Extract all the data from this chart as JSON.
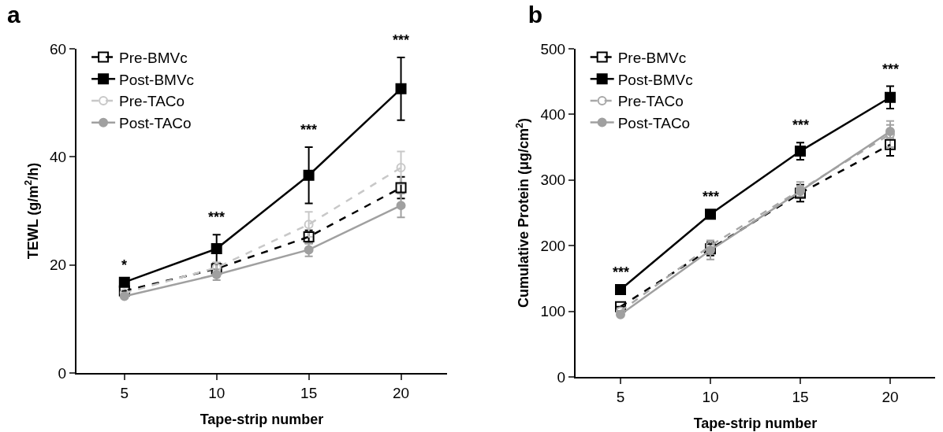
{
  "chart_data": [
    {
      "type": "line",
      "title": "a",
      "xlabel": "Tape-strip number",
      "ylabel": "TEWL (g/m$^{2}$/h)",
      "x": [
        5,
        10,
        15,
        20
      ],
      "xlim": [
        2.4,
        22.5
      ],
      "xticks": [
        5,
        10,
        15,
        20
      ],
      "ylim": [
        0,
        60
      ],
      "yticks": [
        0,
        20,
        40,
        60
      ],
      "grid": false,
      "legend": "top left",
      "series": [
        {
          "name": "Pre-BMVc",
          "color": "#000000",
          "marker": "square",
          "line_style": "dashed",
          "values": [
            15.2,
            19.3,
            25.2,
            34.3
          ],
          "errors": [
            null,
            1,
            1.2,
            2
          ]
        },
        {
          "name": "Post-BMVc",
          "color": "#000000",
          "marker": "square",
          "line_style": "solid",
          "values": [
            16.8,
            23.0,
            36.6,
            52.6
          ],
          "errors": [
            null,
            2.6,
            5.2,
            5.8
          ]
        },
        {
          "name": "Pre-TACo",
          "color": "#c8c8c8",
          "marker": "circle",
          "line_style": "dashed",
          "values": [
            14.8,
            19.5,
            27.5,
            38
          ],
          "errors": [
            null,
            1,
            2.3,
            3
          ]
        },
        {
          "name": "Post-TACo",
          "color": "#a0a0a0",
          "marker": "circle",
          "line_style": "solid",
          "values": [
            14.2,
            18.2,
            22.8,
            31.0
          ],
          "errors": [
            null,
            1,
            1.2,
            2.2
          ]
        }
      ],
      "annotations": [
        {
          "text": "*",
          "x": 5,
          "y": 16.8
        },
        {
          "text": "***",
          "x": 10,
          "y": 23.0
        },
        {
          "text": "***",
          "x": 15,
          "y": 36.6
        },
        {
          "text": "***",
          "x": 20,
          "y": 52.6
        }
      ]
    },
    {
      "type": "line",
      "title": "b",
      "xlabel": "Tape-strip number",
      "ylabel": "Cumulative Protein (μg/cm$^{2}$)",
      "x": [
        5,
        10,
        15,
        20
      ],
      "xlim": [
        2.5,
        22.5
      ],
      "xticks": [
        5,
        10,
        15,
        20
      ],
      "ylim": [
        0,
        500
      ],
      "yticks": [
        0,
        100,
        200,
        300,
        400,
        500
      ],
      "grid": false,
      "legend": "top left",
      "series": [
        {
          "name": "Pre-BMVc",
          "color": "#000000",
          "marker": "square",
          "line_style": "dashed",
          "values": [
            107,
            195,
            280,
            354
          ],
          "errors": [
            null,
            10,
            13,
            17
          ]
        },
        {
          "name": "Post-BMVc",
          "color": "#000000",
          "marker": "square",
          "line_style": "solid",
          "values": [
            133,
            248,
            344,
            426
          ],
          "errors": [
            null,
            null,
            13,
            17
          ]
        },
        {
          "name": "Pre-TACo",
          "color": "#a8a8a8",
          "marker": "circle",
          "line_style": "dashed",
          "values": [
            100,
            200,
            285,
            370
          ],
          "errors": [
            null,
            8,
            12,
            20
          ]
        },
        {
          "name": "Post-TACo",
          "color": "#a0a0a0",
          "marker": "circle",
          "line_style": "solid",
          "values": [
            95,
            193,
            283,
            374
          ],
          "errors": [
            null,
            14,
            8,
            10
          ]
        }
      ],
      "annotations": [
        {
          "text": "***",
          "x": 5,
          "y": 133
        },
        {
          "text": "***",
          "x": 10,
          "y": 248
        },
        {
          "text": "***",
          "x": 15,
          "y": 344
        },
        {
          "text": "***",
          "x": 20,
          "y": 426
        }
      ]
    }
  ]
}
